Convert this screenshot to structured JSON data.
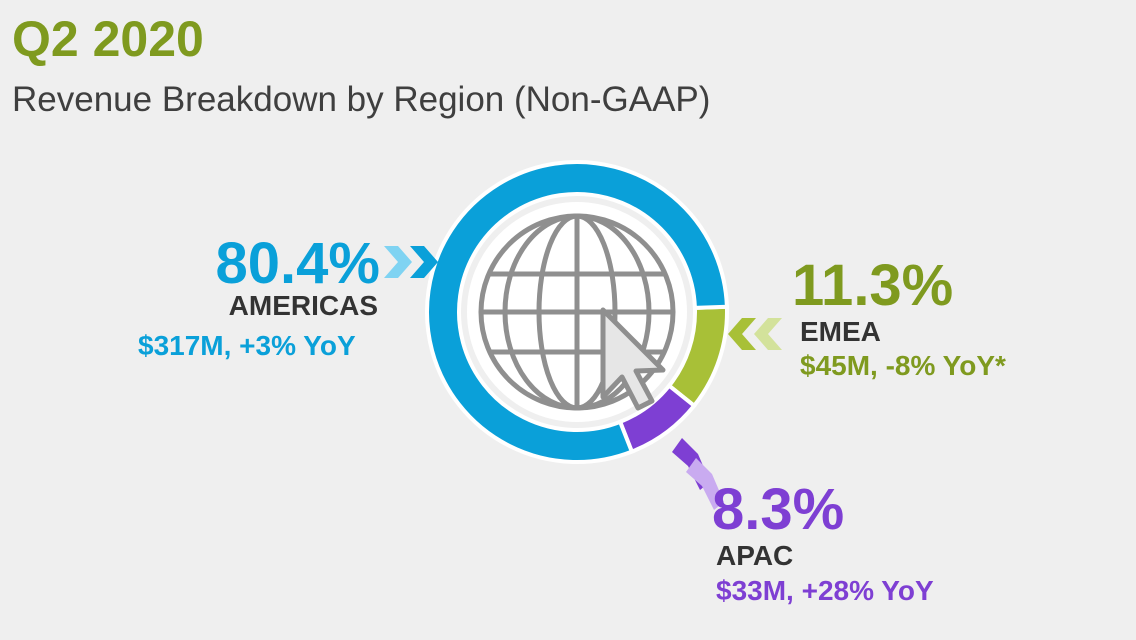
{
  "header": {
    "title": "Q2 2020",
    "subtitle": "Revenue Breakdown by Region (Non-GAAP)"
  },
  "colors": {
    "title": "#7f9a1f",
    "americas": "#0aa0d9",
    "emea": "#a8c037",
    "emea_text": "#7f9a1f",
    "apac": "#7e3fd3",
    "apac_text": "#7e3fd3"
  },
  "icons": {
    "center": "globe-with-cursor-icon",
    "pointers": "double-chevron-icon"
  },
  "chart_data": {
    "type": "pie",
    "title": "Revenue Breakdown by Region (Non-GAAP)",
    "slices": [
      {
        "key": "americas",
        "percent": 80.4,
        "percent_label": "80.4%",
        "region": "AMERICAS",
        "value_label": "$317M,  +3% YoY",
        "revenue_musd": 317,
        "yoy_percent": 3,
        "color": "#0aa0d9",
        "text_color": "#0aa0d9"
      },
      {
        "key": "emea",
        "percent": 11.3,
        "percent_label": "11.3%",
        "region": "EMEA",
        "value_label": "$45M, -8% YoY*",
        "revenue_musd": 45,
        "yoy_percent": -8,
        "color": "#a8c037",
        "text_color": "#7f9a1f"
      },
      {
        "key": "apac",
        "percent": 8.3,
        "percent_label": "8.3%",
        "region": "APAC",
        "value_label": "$33M, +28% YoY",
        "revenue_musd": 33,
        "yoy_percent": 28,
        "color": "#7e3fd3",
        "text_color": "#7e3fd3"
      }
    ]
  }
}
